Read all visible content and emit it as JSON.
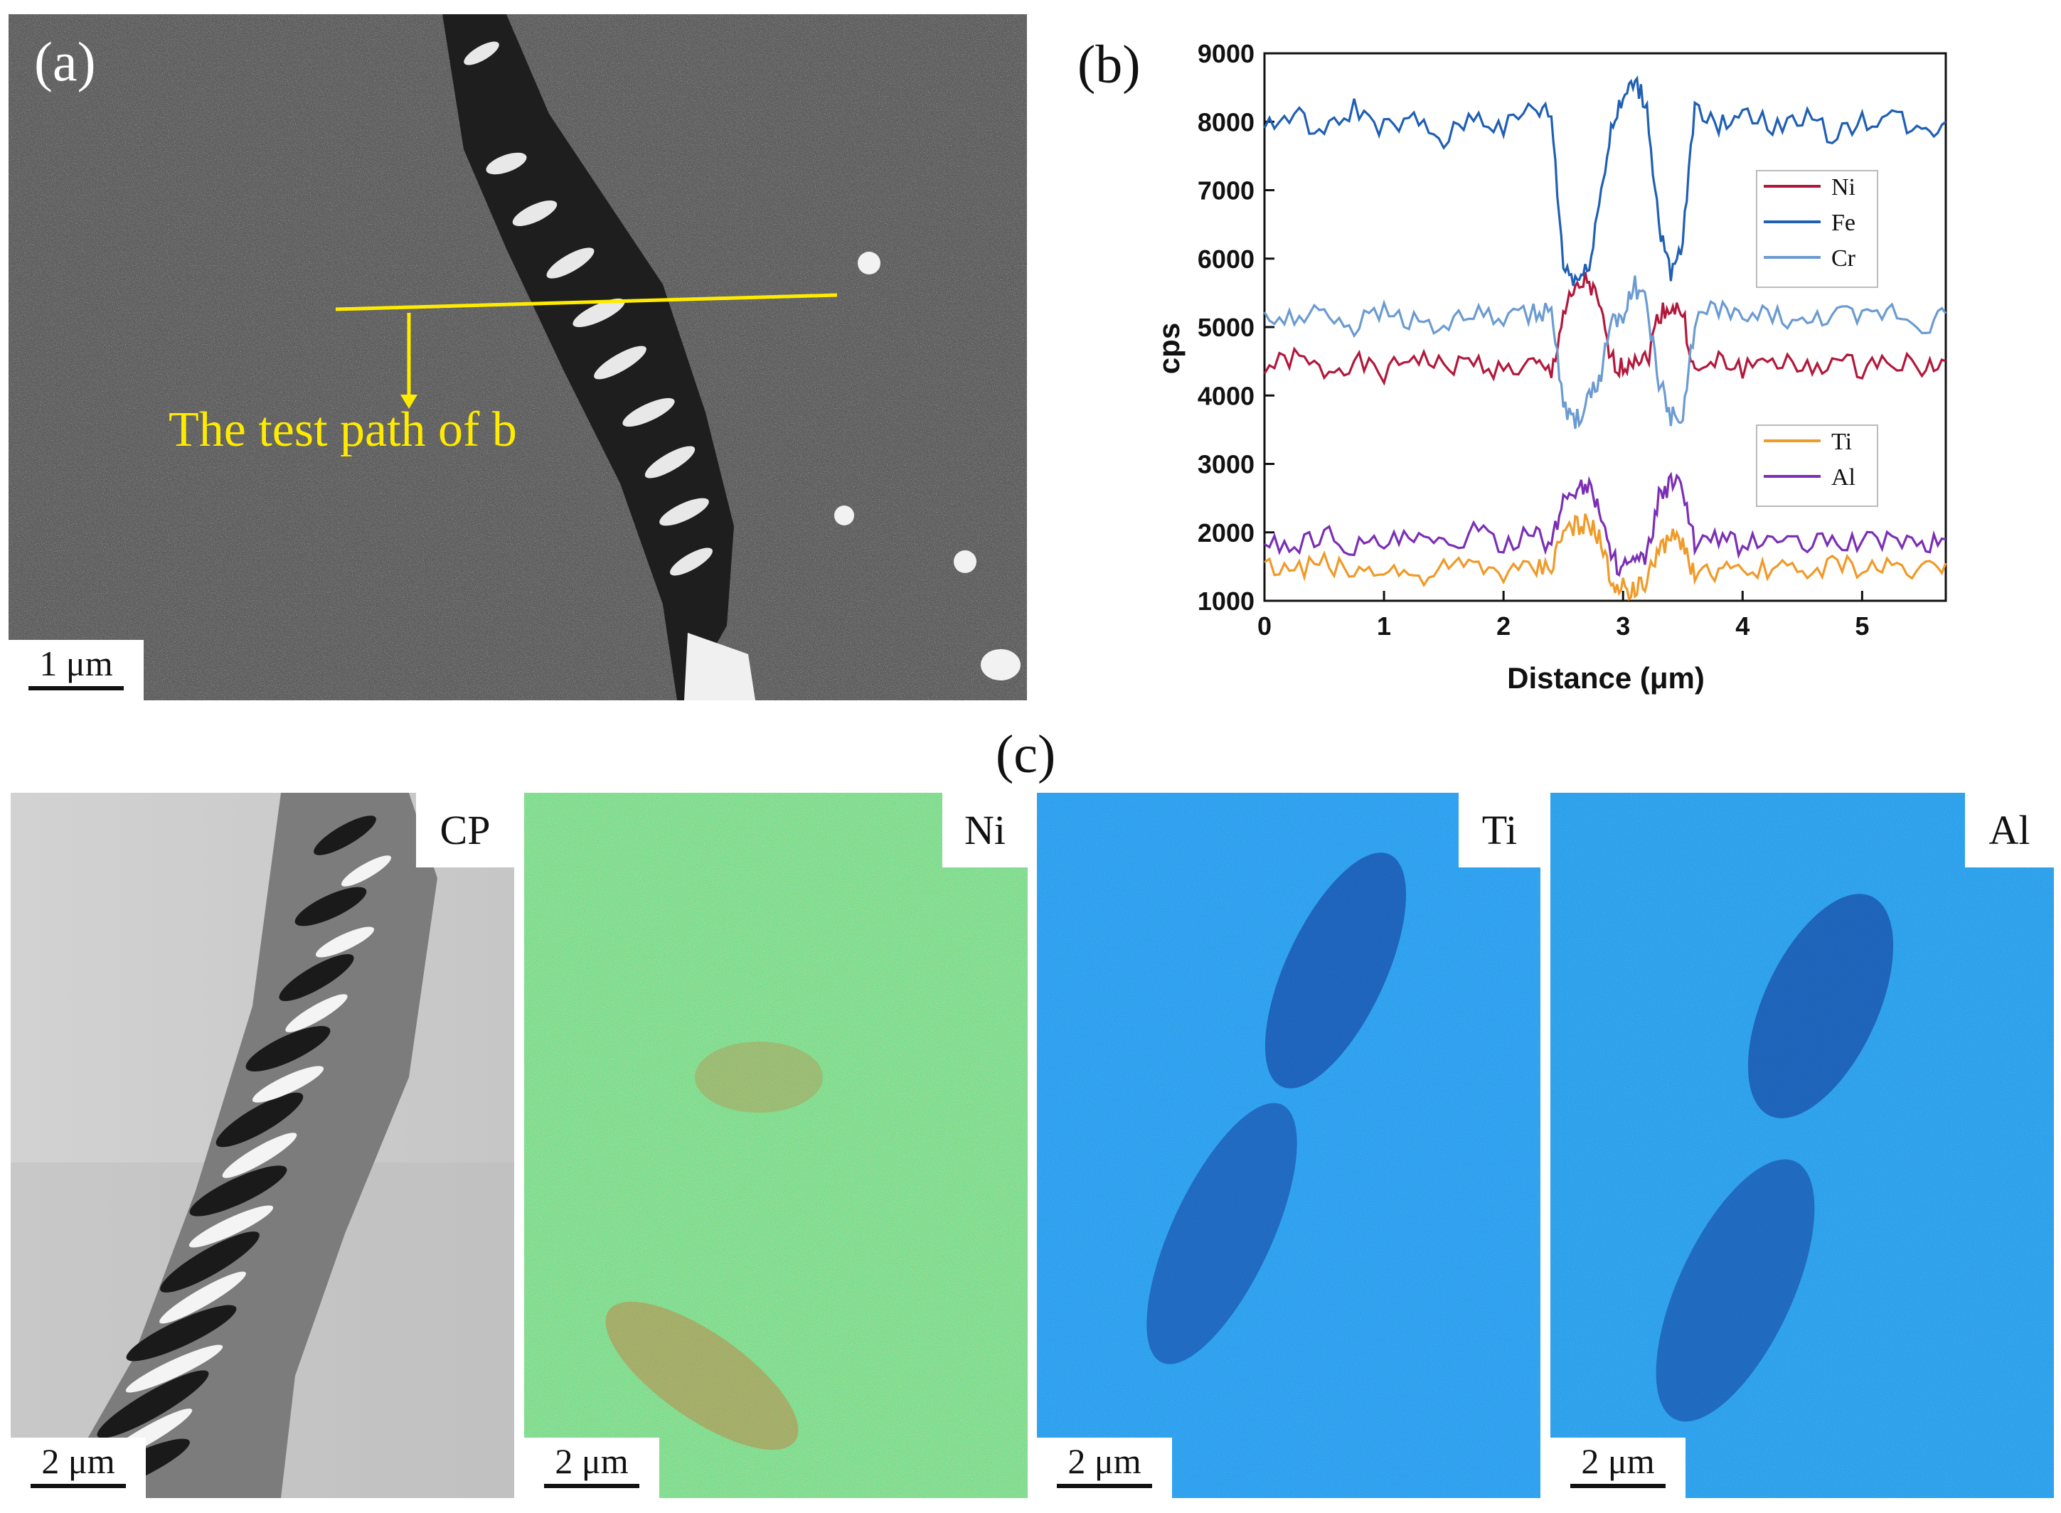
{
  "panel_a": {
    "label": "(a)",
    "annotation": "The test path of b",
    "scale_bar": "1 μm",
    "line_color": "#ffeb00"
  },
  "panel_b": {
    "label": "(b)"
  },
  "panel_c": {
    "label": "(c)",
    "maps": [
      {
        "tag": "CP",
        "scale_bar": "2 μm"
      },
      {
        "tag": "Ni",
        "scale_bar": "2 μm"
      },
      {
        "tag": "Ti",
        "scale_bar": "2 μm"
      },
      {
        "tag": "Al",
        "scale_bar": "2 μm"
      }
    ]
  },
  "chart_data": {
    "type": "line",
    "title": "",
    "xlabel": "Distance (μm)",
    "ylabel": "cps",
    "xlim": [
      0,
      5.7
    ],
    "ylim": [
      1000,
      9000
    ],
    "xticks": [
      0,
      1,
      2,
      3,
      4,
      5
    ],
    "yticks": [
      1000,
      2000,
      3000,
      4000,
      5000,
      6000,
      7000,
      8000,
      9000
    ],
    "x": [
      0,
      0.25,
      0.5,
      0.75,
      1.0,
      1.25,
      1.5,
      1.75,
      2.0,
      2.25,
      2.4,
      2.5,
      2.6,
      2.7,
      2.8,
      2.9,
      3.0,
      3.1,
      3.2,
      3.3,
      3.4,
      3.5,
      3.6,
      3.8,
      4.0,
      4.25,
      4.5,
      4.75,
      5.0,
      5.25,
      5.5,
      5.7
    ],
    "series": [
      {
        "name": "Ni",
        "color": "#b2183c",
        "values": [
          4400,
          4550,
          4350,
          4500,
          4300,
          4600,
          4400,
          4500,
          4350,
          4450,
          4300,
          5200,
          5500,
          5700,
          5300,
          4500,
          4400,
          4600,
          4500,
          5200,
          5300,
          5200,
          4300,
          4500,
          4400,
          4550,
          4350,
          4500,
          4400,
          4550,
          4400,
          4500
        ]
      },
      {
        "name": "Fe",
        "color": "#1f5fb4",
        "values": [
          7900,
          8100,
          7800,
          8200,
          7900,
          8000,
          7700,
          8100,
          7900,
          8200,
          8100,
          5900,
          5700,
          5800,
          6800,
          7900,
          8300,
          8600,
          8200,
          6500,
          5700,
          6200,
          8300,
          7900,
          8200,
          7900,
          8100,
          7800,
          8000,
          8100,
          7800,
          8000
        ]
      },
      {
        "name": "Cr",
        "color": "#6b9bd1",
        "values": [
          5200,
          5100,
          5300,
          5000,
          5250,
          5100,
          5000,
          5200,
          5100,
          5200,
          5250,
          3800,
          3600,
          3900,
          4200,
          5100,
          5200,
          5600,
          5300,
          4200,
          3700,
          3600,
          5100,
          5300,
          5100,
          5200,
          5000,
          5200,
          5100,
          5250,
          5000,
          5200
        ]
      },
      {
        "name": "Ti",
        "color": "#f09a28",
        "values": [
          1500,
          1450,
          1550,
          1400,
          1500,
          1350,
          1450,
          1500,
          1400,
          1450,
          1500,
          2000,
          2100,
          2150,
          1900,
          1300,
          1200,
          1150,
          1250,
          1800,
          1900,
          1850,
          1350,
          1450,
          1350,
          1500,
          1400,
          1550,
          1450,
          1500,
          1450,
          1550
        ]
      },
      {
        "name": "Al",
        "color": "#7b2fb5",
        "values": [
          1900,
          1800,
          2000,
          1800,
          1850,
          1900,
          1800,
          2000,
          1850,
          1950,
          1800,
          2500,
          2650,
          2700,
          2400,
          1600,
          1500,
          1550,
          1600,
          2500,
          2700,
          2650,
          1800,
          1900,
          1800,
          1950,
          1800,
          1900,
          1850,
          1950,
          1800,
          1900
        ]
      }
    ],
    "legends": [
      {
        "entries": [
          "Ni",
          "Fe",
          "Cr"
        ],
        "placement": "right-middle"
      },
      {
        "entries": [
          "Ti",
          "Al"
        ],
        "placement": "right-lower"
      }
    ]
  }
}
